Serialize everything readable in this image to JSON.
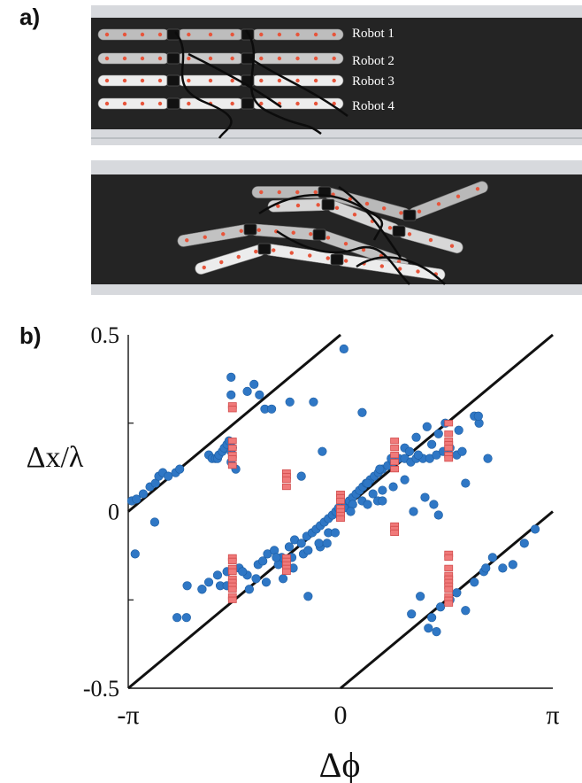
{
  "panel_a": {
    "label": "a)",
    "robots": [
      {
        "name": "Robot 1",
        "color": "#bdbdbd"
      },
      {
        "name": "Robot 2",
        "color": "#c9c9c9"
      },
      {
        "name": "Robot 3",
        "color": "#ededed"
      },
      {
        "name": "Robot 4",
        "color": "#ededed"
      }
    ],
    "colors": {
      "floor": "#242424",
      "rail": "#d7d9dd",
      "marker": "#e7553b",
      "cable": "#0c0c0c"
    }
  },
  "panel_b": {
    "label": "b)"
  },
  "chart_data": {
    "type": "scatter",
    "xlabel": "Δϕ",
    "ylabel": "Δx/λ",
    "xlim": [
      -3.1416,
      3.1416
    ],
    "ylim": [
      -0.5,
      0.5
    ],
    "x_ticks": [
      {
        "value": -3.1416,
        "label": "-π"
      },
      {
        "value": 0,
        "label": "0"
      },
      {
        "value": 3.1416,
        "label": "π"
      }
    ],
    "y_ticks": [
      {
        "value": 0.5,
        "label": "0.5"
      },
      {
        "value": 0,
        "label": "0"
      },
      {
        "value": -0.5,
        "label": "-0.5"
      }
    ],
    "reference_lines": [
      {
        "x": [
          -3.1416,
          0
        ],
        "y": [
          0,
          0.5
        ]
      },
      {
        "x": [
          -3.1416,
          3.1416
        ],
        "y": [
          -0.5,
          0.5
        ]
      },
      {
        "x": [
          0,
          3.1416
        ],
        "y": [
          -0.5,
          0
        ]
      }
    ],
    "series": [
      {
        "marker": "circle",
        "color": "#2f77c5",
        "x": [
          -3.09,
          -3.02,
          -2.92,
          -2.82,
          -2.74,
          -2.69,
          -2.63,
          -2.55,
          -2.44,
          -2.38,
          -3.04,
          -2.75,
          -1.95,
          -1.9,
          -1.85,
          -1.82,
          -1.8,
          -1.75,
          -1.72,
          -1.68,
          -1.65,
          -1.62,
          -1.6,
          -1.62,
          -1.55,
          -1.38,
          -1.28,
          -1.2,
          -1.12,
          -1.02,
          -0.75,
          -0.4,
          -2.27,
          -2.05,
          -1.95,
          -1.82,
          -1.68,
          -1.5,
          -1.38,
          -1.22,
          -1.08,
          -0.98,
          -0.87,
          -0.76,
          -0.68,
          -0.58,
          -0.5,
          -0.42,
          -0.36,
          -0.3,
          -0.24,
          -0.18,
          -0.12,
          -0.07,
          -0.03,
          0.03,
          0.08,
          0.13,
          0.18,
          0.23,
          0.28,
          0.33,
          0.38,
          0.44,
          0.5,
          0.56,
          0.62,
          0.7,
          0.78,
          0.86,
          0.95,
          1.04,
          1.12,
          1.22,
          1.32,
          1.42,
          1.52,
          1.62,
          1.72,
          1.8,
          -1.45,
          -1.15,
          -0.92,
          -0.72,
          -0.55,
          -0.3,
          -0.48,
          -0.32,
          -0.18,
          0.05,
          0.18,
          0.32,
          0.48,
          0.62,
          0.78,
          0.95,
          -1.65,
          -1.35,
          -1.1,
          -0.85,
          -0.7,
          -1.25,
          -0.95,
          -0.2,
          -0.08,
          0.15,
          0.4,
          0.55,
          0.4,
          0.58,
          0.75,
          0.95,
          1.15,
          1.35,
          1.55,
          1.28,
          1.12,
          1.02,
          1.45,
          1.75,
          1.98,
          2.05,
          2.18,
          1.85,
          0.62,
          1.45,
          1.38,
          1.08,
          1.25,
          2.04,
          1.18,
          1.35,
          1.48,
          1.62,
          1.72,
          1.85,
          1.98,
          2.12,
          2.25,
          2.4,
          2.55,
          2.72,
          2.88,
          2.15,
          1.3,
          1.42,
          1.05,
          -0.58,
          -2.42,
          -2.28,
          -2.05,
          -1.78,
          -1.68,
          -0.48,
          0.05
        ],
        "y": [
          0.03,
          0.035,
          0.05,
          0.07,
          0.08,
          0.1,
          0.11,
          0.1,
          0.11,
          0.12,
          -0.12,
          -0.03,
          0.16,
          0.15,
          0.15,
          0.15,
          0.16,
          0.17,
          0.18,
          0.19,
          0.2,
          0.17,
          0.18,
          0.14,
          0.12,
          0.34,
          0.36,
          0.33,
          0.29,
          0.29,
          0.31,
          0.31,
          -0.21,
          -0.22,
          -0.2,
          -0.18,
          -0.17,
          -0.16,
          -0.18,
          -0.15,
          -0.12,
          -0.11,
          -0.13,
          -0.1,
          -0.08,
          -0.09,
          -0.07,
          -0.06,
          -0.05,
          -0.04,
          -0.03,
          -0.02,
          -0.01,
          0.0,
          0.01,
          0.015,
          0.02,
          0.03,
          0.04,
          0.05,
          0.06,
          0.07,
          0.08,
          0.09,
          0.1,
          0.11,
          0.12,
          0.13,
          0.14,
          0.15,
          0.15,
          0.14,
          0.15,
          0.15,
          0.15,
          0.16,
          0.17,
          0.18,
          0.16,
          0.17,
          -0.17,
          -0.14,
          -0.15,
          -0.13,
          -0.12,
          -0.1,
          -0.11,
          -0.09,
          -0.06,
          0.01,
          0.02,
          0.03,
          0.05,
          0.06,
          0.07,
          0.09,
          -0.21,
          -0.22,
          -0.2,
          -0.19,
          -0.16,
          -0.19,
          -0.13,
          -0.09,
          -0.06,
          0.0,
          0.02,
          0.03,
          0.08,
          0.12,
          0.15,
          0.18,
          0.16,
          0.19,
          0.25,
          0.24,
          0.21,
          0.17,
          0.22,
          0.23,
          0.27,
          0.25,
          0.15,
          0.08,
          0.03,
          -0.01,
          0.02,
          0.0,
          0.04,
          0.27,
          -0.24,
          -0.3,
          -0.27,
          -0.25,
          -0.23,
          -0.28,
          -0.2,
          -0.17,
          -0.13,
          -0.16,
          -0.15,
          -0.09,
          -0.05,
          -0.16,
          -0.33,
          -0.34,
          -0.29,
          0.1,
          -0.3,
          -0.3,
          -0.22,
          -0.21,
          -0.21,
          -0.24,
          0.46
        ],
        "extra_x": [
          -1.62,
          -1.62,
          -0.27,
          0.32
        ],
        "extra_y": [
          0.38,
          0.33,
          0.17,
          0.28
        ]
      },
      {
        "marker": "square",
        "color": "#f07a7a",
        "x": [
          -1.6,
          -1.6,
          -1.6,
          -1.6,
          -1.6,
          -1.6,
          -1.6,
          -1.6,
          -1.6,
          -1.6,
          -1.6,
          -1.6,
          -1.6,
          -1.6,
          -1.6,
          -1.6,
          -1.6,
          -0.8,
          -0.8,
          -0.8,
          -0.8,
          -0.8,
          -0.8,
          -0.8,
          -0.8,
          -0.8,
          0.0,
          0.0,
          0.0,
          0.0,
          0.0,
          0.0,
          0.0,
          0.8,
          0.8,
          0.8,
          0.8,
          0.8,
          0.8,
          0.8,
          0.8,
          1.6,
          1.6,
          1.6,
          1.6,
          1.6,
          1.6,
          1.6,
          1.6,
          1.6,
          1.6,
          1.6,
          1.6,
          1.6,
          1.6,
          1.6,
          1.6,
          1.6,
          1.6
        ],
        "y": [
          0.3,
          0.29,
          0.2,
          0.18,
          0.16,
          0.15,
          0.13,
          -0.13,
          -0.14,
          -0.16,
          -0.17,
          -0.19,
          -0.2,
          -0.21,
          -0.22,
          -0.24,
          -0.25,
          0.11,
          0.1,
          0.09,
          0.07,
          -0.13,
          -0.14,
          -0.15,
          -0.16,
          -0.17,
          0.05,
          0.04,
          0.03,
          0.01,
          0.0,
          -0.01,
          -0.02,
          0.2,
          0.18,
          0.16,
          0.14,
          0.12,
          -0.04,
          -0.05,
          -0.06,
          0.25,
          0.22,
          0.2,
          0.19,
          0.18,
          0.16,
          0.15,
          -0.12,
          -0.13,
          -0.16,
          -0.18,
          -0.19,
          -0.2,
          -0.21,
          -0.22,
          -0.24,
          -0.25,
          -0.26
        ]
      }
    ]
  }
}
